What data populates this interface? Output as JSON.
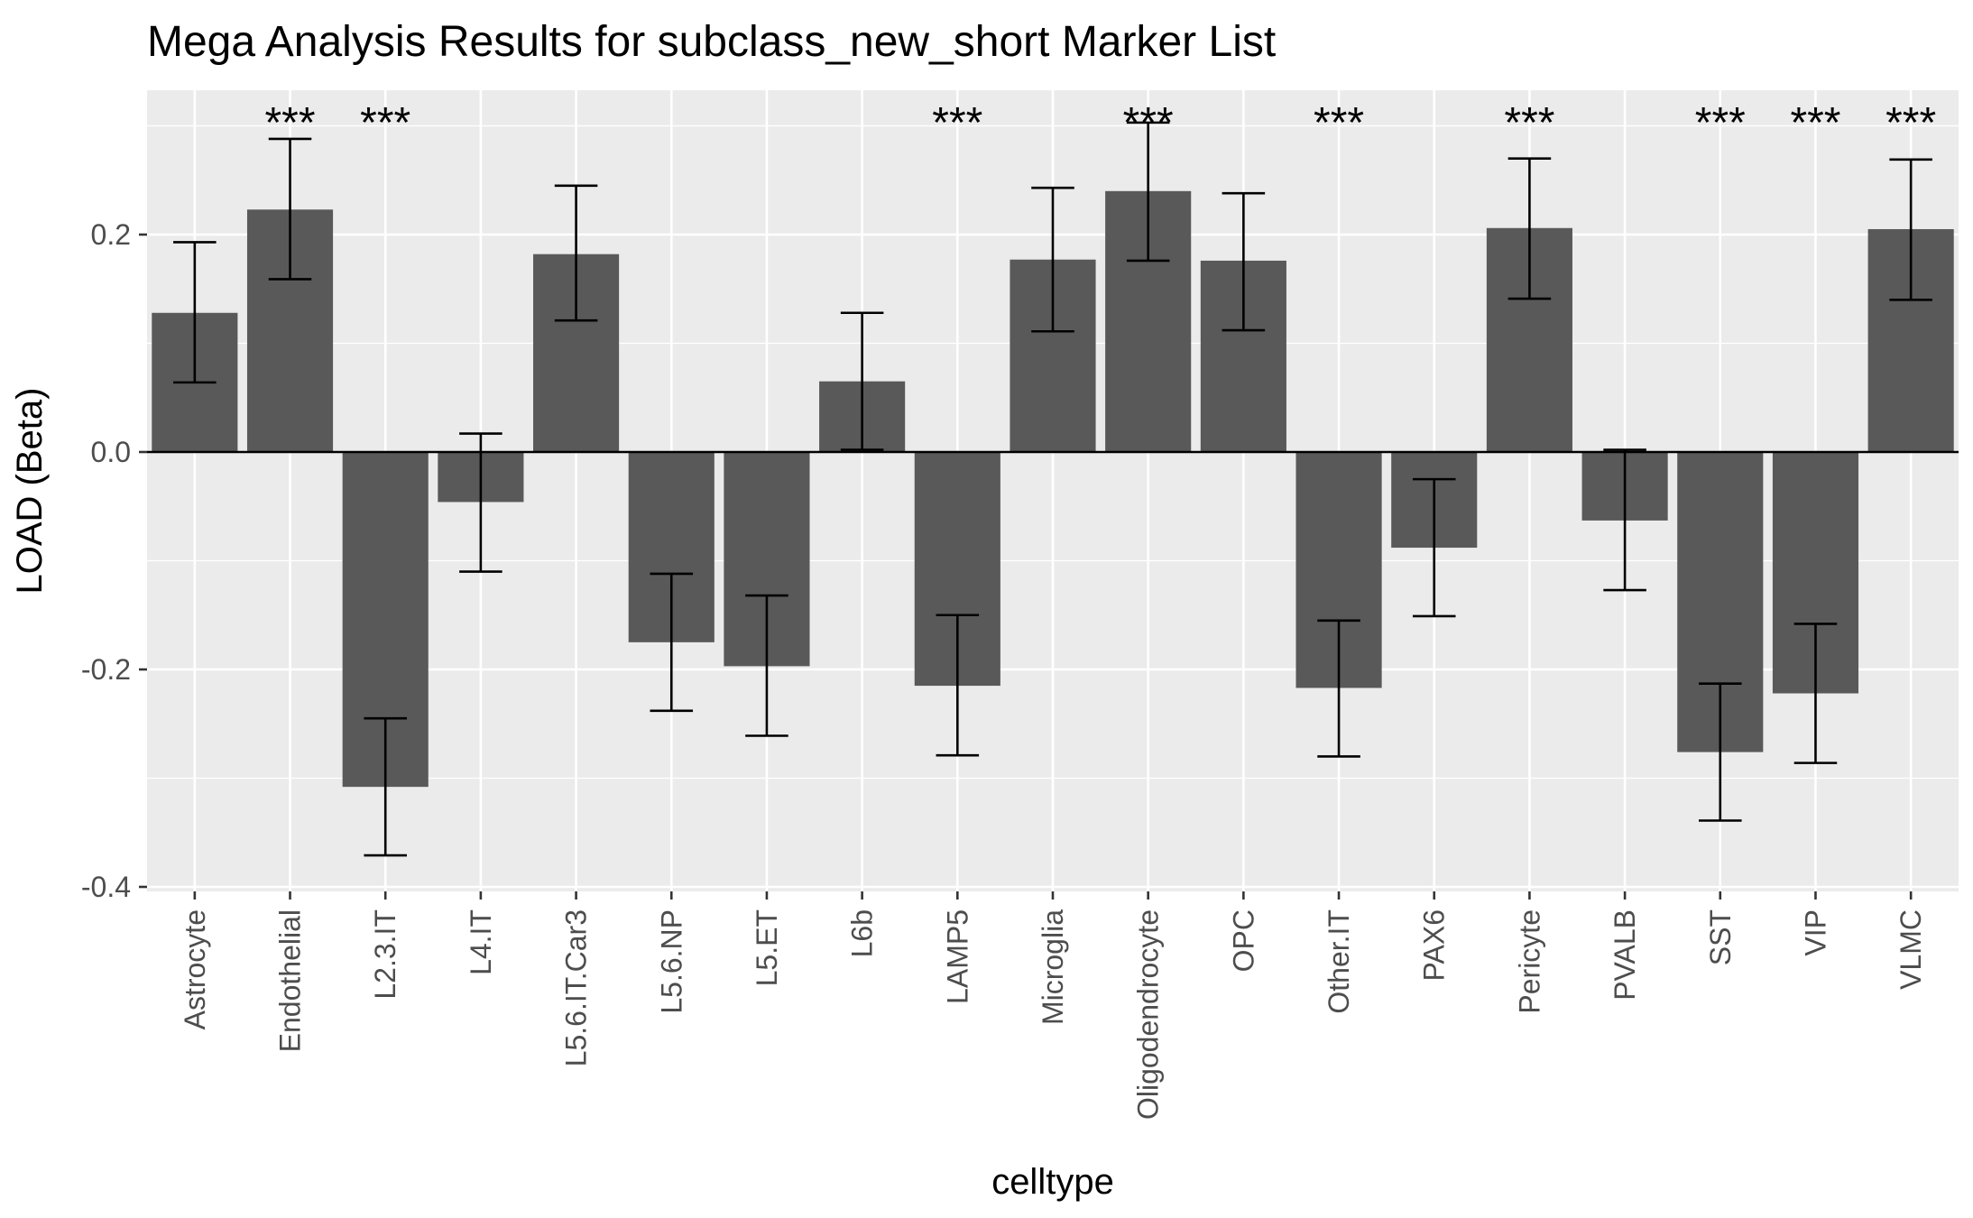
{
  "chart_data": {
    "type": "bar",
    "title": "Mega Analysis Results for subclass_new_short Marker List",
    "xlabel": "celltype",
    "ylabel": "LOAD (Beta)",
    "ylim": [
      -0.4,
      0.32
    ],
    "yticks": [
      -0.4,
      -0.2,
      0.0,
      0.2
    ],
    "ytick_labels": [
      "-0.4",
      "-0.2",
      "0.0",
      "0.2"
    ],
    "grid": true,
    "categories": [
      "Astrocyte",
      "Endothelial",
      "L2.3.IT",
      "L4.IT",
      "L5.6.IT.Car3",
      "L5.6.NP",
      "L5.ET",
      "L6b",
      "LAMP5",
      "Microglia",
      "Oligodendrocyte",
      "OPC",
      "Other.IT",
      "PAX6",
      "Pericyte",
      "PVALB",
      "SST",
      "VIP",
      "VLMC"
    ],
    "values": [
      0.128,
      0.223,
      -0.308,
      -0.046,
      0.182,
      -0.175,
      -0.197,
      0.065,
      -0.215,
      0.177,
      0.24,
      0.176,
      -0.217,
      -0.088,
      0.206,
      -0.063,
      -0.276,
      -0.222,
      0.205
    ],
    "error_low": [
      0.064,
      0.159,
      -0.371,
      -0.11,
      0.121,
      -0.238,
      -0.261,
      0.002,
      -0.279,
      0.111,
      0.176,
      0.112,
      -0.28,
      -0.151,
      0.141,
      -0.127,
      -0.339,
      -0.286,
      0.14
    ],
    "error_high": [
      0.193,
      0.288,
      -0.245,
      0.017,
      0.245,
      -0.112,
      -0.132,
      0.128,
      -0.15,
      0.243,
      0.303,
      0.238,
      -0.155,
      -0.025,
      0.27,
      0.002,
      -0.213,
      -0.158,
      0.269
    ],
    "significance": [
      "",
      "***",
      "***",
      "",
      "",
      "",
      "",
      "",
      "***",
      "",
      "***",
      "",
      "***",
      "",
      "***",
      "",
      "***",
      "***",
      "***"
    ],
    "colors": {
      "bar": "#595959",
      "panel_bg": "#ebebeb",
      "grid": "#ffffff",
      "errorbar": "#000000",
      "zero_line": "#000000"
    }
  }
}
